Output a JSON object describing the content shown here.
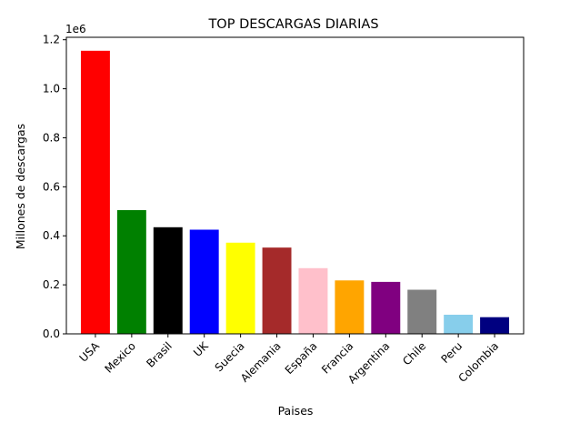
{
  "chart_data": {
    "type": "bar",
    "title": "TOP DESCARGAS DIARIAS",
    "xlabel": "Paises",
    "ylabel": "Millones de descargas",
    "offset_text": "1e6",
    "categories": [
      "USA",
      "Mexico",
      "Brasil",
      "UK",
      "Suecia",
      "Alemania",
      "España",
      "Francia",
      "Argentina",
      "Chile",
      "Peru",
      "Colombia"
    ],
    "values": [
      1155000,
      505000,
      435000,
      425000,
      372000,
      352000,
      268000,
      218000,
      212000,
      180000,
      78000,
      68000
    ],
    "colors": [
      "#ff0000",
      "#008000",
      "#000000",
      "#0000ff",
      "#ffff00",
      "#a52a2a",
      "#ffc0cb",
      "#ffa500",
      "#800080",
      "#808080",
      "#87ceeb",
      "#000080"
    ],
    "ylim": [
      0,
      1210000
    ],
    "yticks": [
      0,
      200000,
      400000,
      600000,
      800000,
      1000000,
      1200000
    ],
    "ytick_labels": [
      "0.0",
      "0.2",
      "0.4",
      "0.6",
      "0.8",
      "1.0",
      "1.2"
    ],
    "grid": false,
    "legend": "none"
  }
}
